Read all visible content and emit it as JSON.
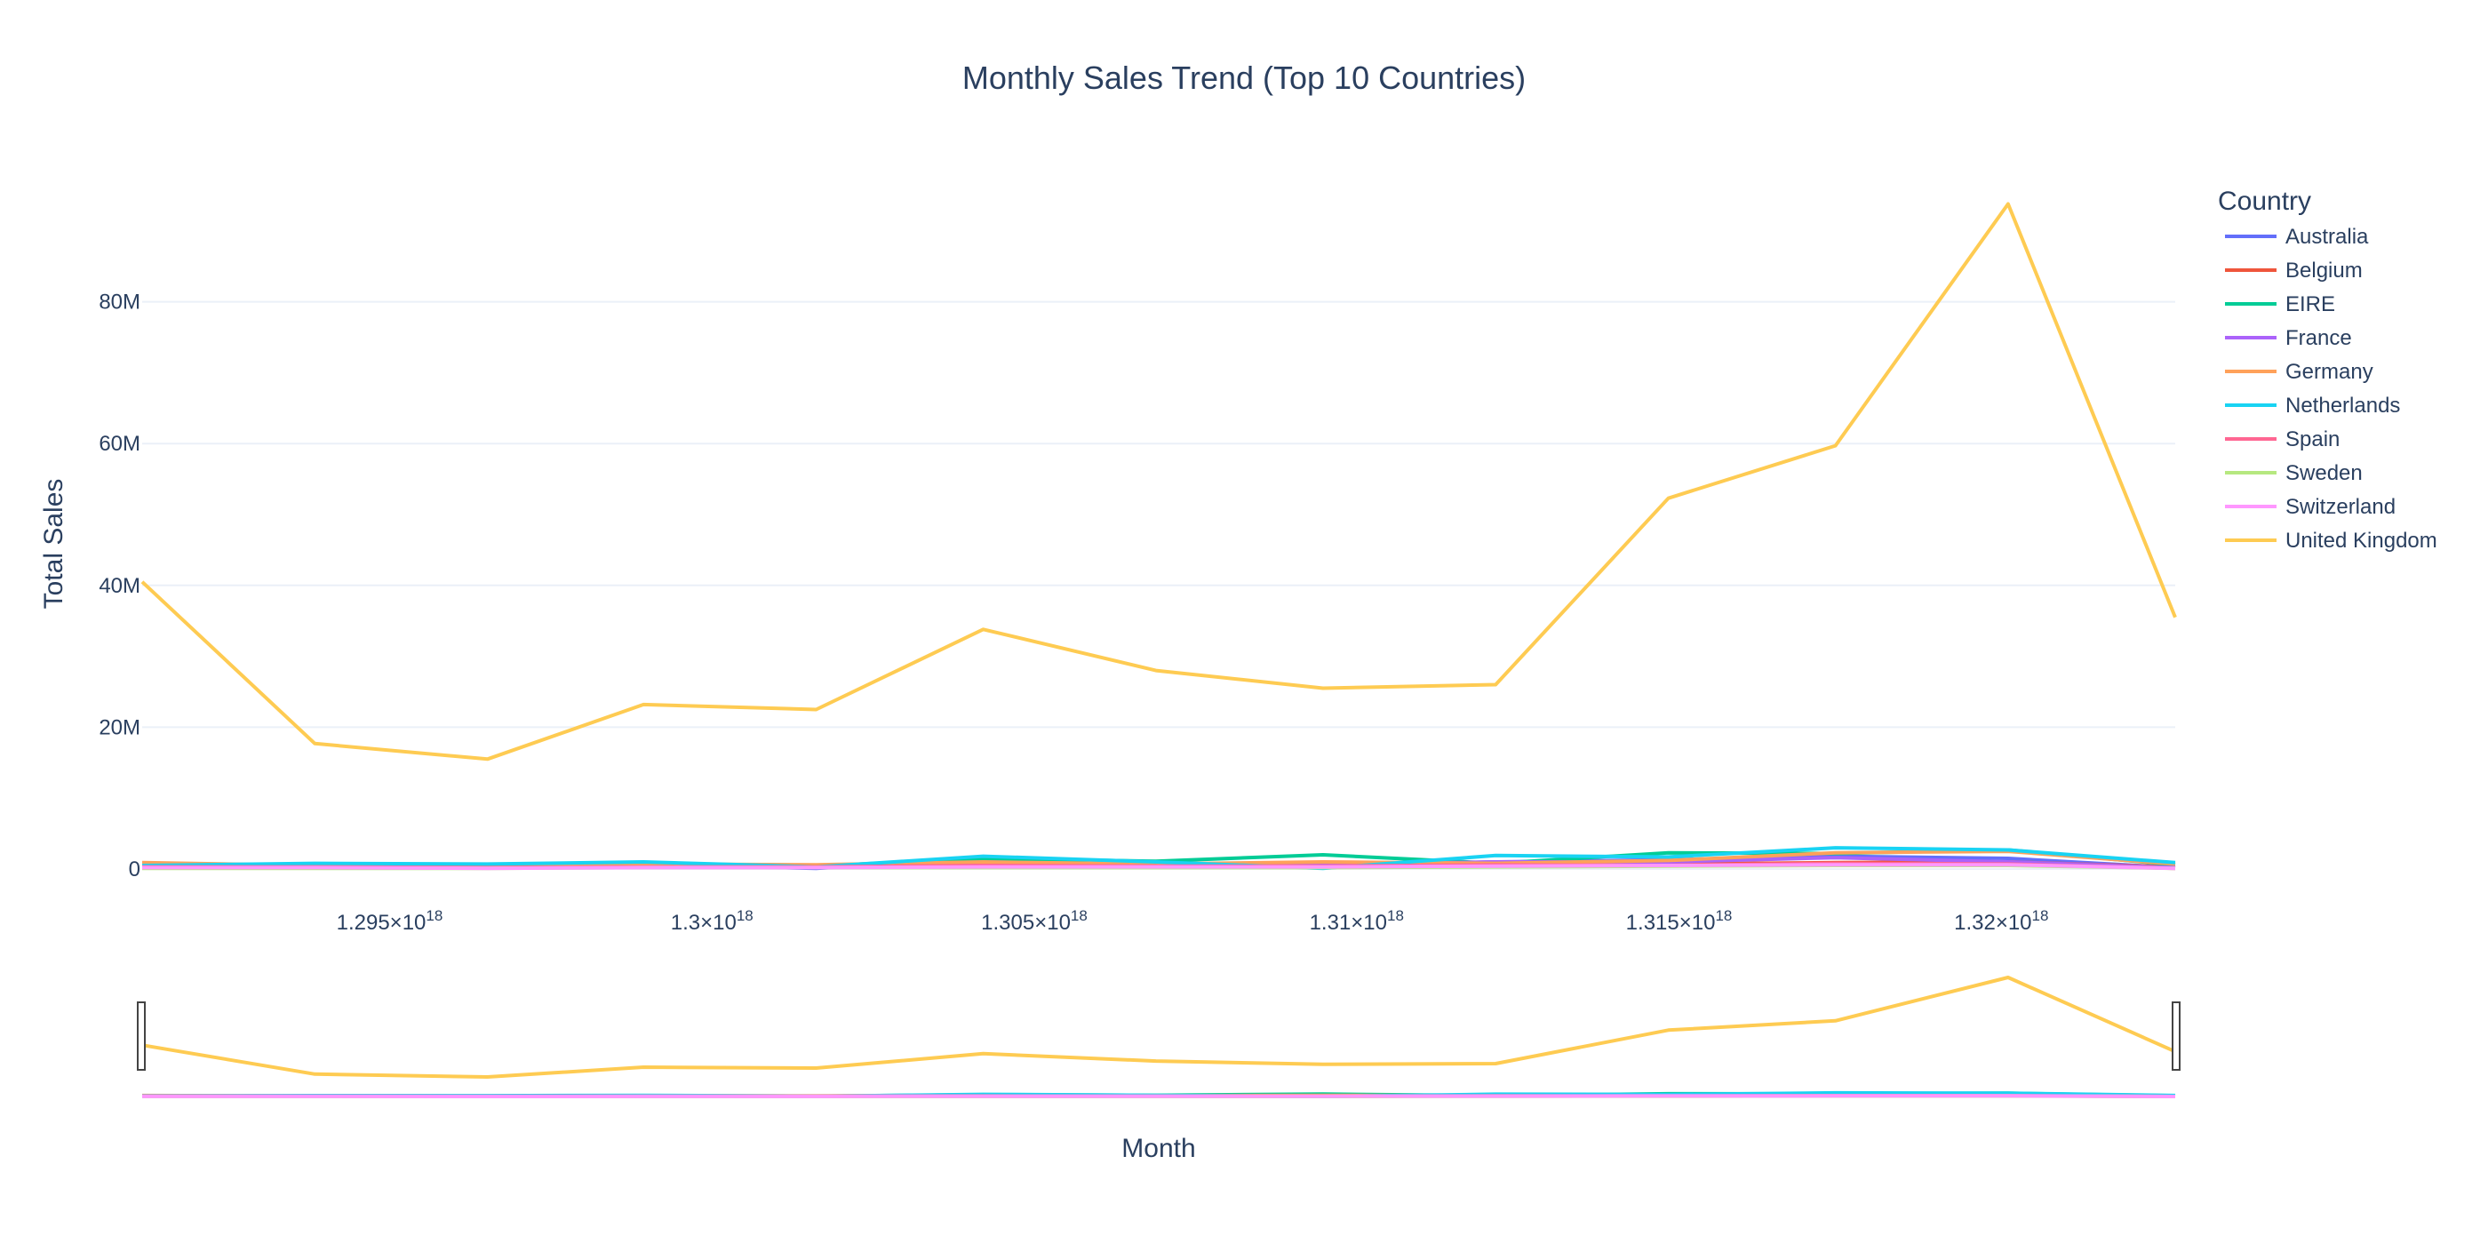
{
  "chart_data": {
    "type": "line",
    "title": "Monthly Sales Trend (Top 10 Countries)",
    "xlabel": "Month",
    "ylabel": "Total Sales",
    "x": [
      1291161600000000000,
      1293840000000000000,
      1296518400000000000,
      1298937600000000000,
      1301616000000000000,
      1304208000000000000,
      1306886400000000000,
      1309478400000000000,
      1312156800000000000,
      1314835200000000000,
      1317427200000000000,
      1320105600000000000,
      1322697600000000000
    ],
    "x_tick_values": [
      1.295e+18,
      1.3e+18,
      1.305e+18,
      1.31e+18,
      1.315e+18,
      1.32e+18
    ],
    "x_tick_labels": [
      {
        "base": "1.295×10",
        "exp": "18"
      },
      {
        "base": "1.3×10",
        "exp": "18"
      },
      {
        "base": "1.305×10",
        "exp": "18"
      },
      {
        "base": "1.31×10",
        "exp": "18"
      },
      {
        "base": "1.315×10",
        "exp": "18"
      },
      {
        "base": "1.32×10",
        "exp": "18"
      }
    ],
    "y_ticks": [
      0,
      20000000,
      40000000,
      60000000,
      80000000
    ],
    "y_tick_labels": [
      "0",
      "20M",
      "40M",
      "60M",
      "80M"
    ],
    "ylim": [
      -500000,
      100000000
    ],
    "grid": true,
    "rangeslider": true,
    "legend": {
      "title": "Country",
      "placement": "top-right"
    },
    "series": [
      {
        "name": "Australia",
        "color": "#636efa",
        "values": [
          400000,
          300000,
          400000,
          600000,
          100000,
          1400000,
          700000,
          500000,
          1000000,
          1300000,
          1800000,
          1500000,
          200000
        ]
      },
      {
        "name": "Belgium",
        "color": "#EF553B",
        "values": [
          200000,
          200000,
          300000,
          300000,
          300000,
          400000,
          400000,
          400000,
          500000,
          700000,
          900000,
          1000000,
          300000
        ]
      },
      {
        "name": "EIRE",
        "color": "#00cc96",
        "values": [
          600000,
          500000,
          500000,
          700000,
          400000,
          1500000,
          1100000,
          2000000,
          800000,
          2300000,
          2200000,
          2700000,
          600000
        ]
      },
      {
        "name": "France",
        "color": "#ab63fa",
        "values": [
          600000,
          500000,
          400000,
          400000,
          400000,
          800000,
          700000,
          600000,
          1000000,
          1000000,
          1600000,
          1000000,
          200000
        ]
      },
      {
        "name": "Germany",
        "color": "#FFA15A",
        "values": [
          900000,
          500000,
          500000,
          700000,
          600000,
          1000000,
          700000,
          1000000,
          800000,
          1200000,
          2300000,
          2500000,
          700000
        ]
      },
      {
        "name": "Netherlands",
        "color": "#19d3f3",
        "values": [
          500000,
          800000,
          700000,
          1000000,
          300000,
          1800000,
          1000000,
          100000,
          1900000,
          1700000,
          3000000,
          2700000,
          900000
        ]
      },
      {
        "name": "Spain",
        "color": "#FF6692",
        "values": [
          300000,
          300000,
          200000,
          300000,
          300000,
          500000,
          400000,
          400000,
          600000,
          500000,
          800000,
          700000,
          100000
        ]
      },
      {
        "name": "Sweden",
        "color": "#B6E880",
        "values": [
          100000,
          100000,
          100000,
          200000,
          200000,
          200000,
          200000,
          200000,
          300000,
          400000,
          500000,
          500000,
          100000
        ]
      },
      {
        "name": "Switzerland",
        "color": "#FF97FF",
        "values": [
          200000,
          200000,
          100000,
          200000,
          200000,
          300000,
          300000,
          300000,
          400000,
          500000,
          600000,
          600000,
          100000
        ]
      },
      {
        "name": "United Kingdom",
        "color": "#FECB52",
        "values": [
          40500000,
          17700000,
          15500000,
          23200000,
          22500000,
          33800000,
          28000000,
          25500000,
          26000000,
          52300000,
          59700000,
          93800000,
          35500000
        ]
      }
    ]
  }
}
